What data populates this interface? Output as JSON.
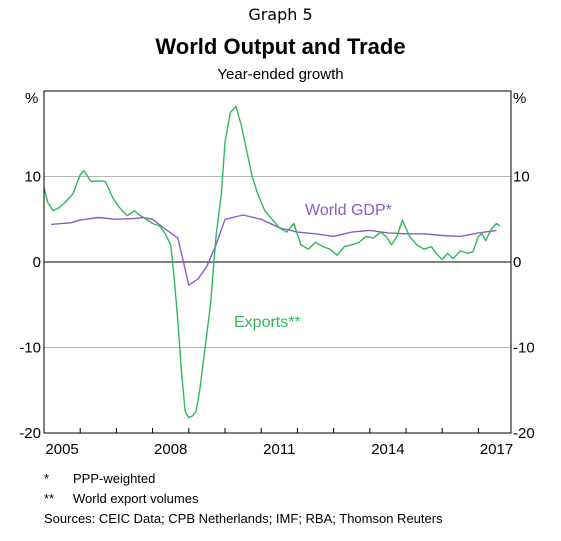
{
  "graph_number": "Graph 5",
  "chart_data": {
    "type": "line",
    "title": "World Output and Trade",
    "subtitle": "Year-ended growth",
    "y_unit_left": "%",
    "y_unit_right": "%",
    "ylim": [
      -20,
      20
    ],
    "y_ticks": [
      10,
      0,
      -10,
      -20
    ],
    "xlim": [
      2005.0,
      2017.9
    ],
    "x_ticks": [
      2005,
      2008,
      2011,
      2014,
      2017
    ],
    "grid": true,
    "series": [
      {
        "name": "World GDP*",
        "color": "#8a5cc7",
        "x": [
          2005.2,
          2005.75,
          2006.0,
          2006.5,
          2007.0,
          2007.5,
          2007.75,
          2008.0,
          2008.3,
          2008.7,
          2009.0,
          2009.25,
          2009.5,
          2009.75,
          2010.0,
          2010.5,
          2011.0,
          2011.5,
          2012.0,
          2012.5,
          2013.0,
          2013.5,
          2014.0,
          2014.5,
          2015.0,
          2015.5,
          2016.0,
          2016.5,
          2017.0,
          2017.5
        ],
        "y": [
          4.4,
          4.6,
          4.9,
          5.2,
          5.0,
          5.1,
          5.2,
          5.0,
          4.0,
          2.8,
          -2.7,
          -2.0,
          -0.5,
          2.0,
          5.0,
          5.5,
          5.0,
          4.0,
          3.5,
          3.3,
          3.0,
          3.5,
          3.7,
          3.4,
          3.3,
          3.3,
          3.1,
          3.0,
          3.4,
          3.7
        ]
      },
      {
        "name": "Exports**",
        "color": "#2fb85a",
        "x": [
          2005.0,
          2005.1,
          2005.25,
          2005.4,
          2005.6,
          2005.8,
          2006.0,
          2006.1,
          2006.3,
          2006.5,
          2006.7,
          2006.9,
          2007.1,
          2007.3,
          2007.5,
          2007.6,
          2007.75,
          2008.0,
          2008.2,
          2008.35,
          2008.5,
          2008.6,
          2008.7,
          2008.8,
          2008.9,
          2009.0,
          2009.1,
          2009.2,
          2009.3,
          2009.45,
          2009.6,
          2009.75,
          2009.9,
          2010.0,
          2010.15,
          2010.3,
          2010.45,
          2010.6,
          2010.75,
          2010.9,
          2011.1,
          2011.3,
          2011.5,
          2011.7,
          2011.9,
          2012.1,
          2012.3,
          2012.5,
          2012.7,
          2012.9,
          2013.1,
          2013.3,
          2013.5,
          2013.7,
          2013.9,
          2014.1,
          2014.3,
          2014.45,
          2014.6,
          2014.75,
          2014.9,
          2015.1,
          2015.3,
          2015.5,
          2015.7,
          2015.85,
          2016.0,
          2016.15,
          2016.3,
          2016.5,
          2016.7,
          2016.85,
          2017.0,
          2017.1,
          2017.2,
          2017.35,
          2017.5,
          2017.6
        ],
        "y": [
          8.7,
          7.0,
          6.0,
          6.3,
          7.0,
          8.0,
          10.2,
          10.7,
          9.4,
          9.5,
          9.4,
          7.5,
          6.3,
          5.4,
          6.0,
          5.6,
          5.2,
          4.5,
          4.2,
          3.3,
          2.0,
          -2.0,
          -7.0,
          -13.0,
          -17.5,
          -18.2,
          -18.0,
          -17.5,
          -15.0,
          -10.0,
          -5.0,
          3.0,
          8.0,
          14.0,
          17.5,
          18.2,
          16.0,
          13.0,
          10.0,
          8.0,
          6.0,
          5.0,
          4.0,
          3.5,
          4.5,
          2.0,
          1.5,
          2.3,
          1.8,
          1.5,
          0.8,
          1.8,
          2.0,
          2.3,
          3.0,
          2.8,
          3.5,
          3.0,
          2.0,
          3.0,
          4.9,
          3.0,
          2.0,
          1.5,
          1.8,
          0.9,
          0.3,
          1.0,
          0.4,
          1.3,
          1.0,
          1.2,
          3.0,
          3.3,
          2.5,
          3.8,
          4.5,
          4.2
        ]
      }
    ],
    "labels": {
      "gdp": "World GDP*",
      "exports": "Exports**"
    }
  },
  "notes": [
    {
      "mark": "*",
      "text": "PPP-weighted"
    },
    {
      "mark": "**",
      "text": "World export volumes"
    }
  ],
  "sources": "Sources:  CEIC Data; CPB Netherlands; IMF; RBA; Thomson Reuters"
}
